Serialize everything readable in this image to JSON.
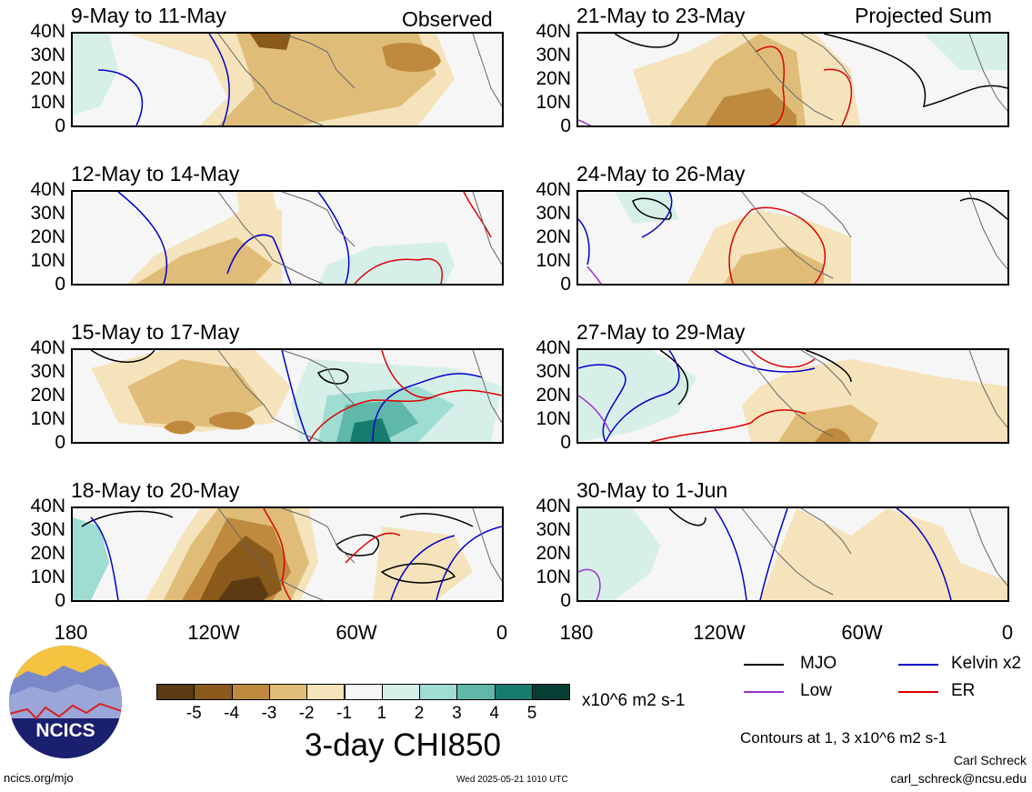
{
  "observed_label": "Observed",
  "projected_label": "Projected Sum",
  "panels_left": [
    {
      "title": "9-May to 11-May"
    },
    {
      "title": "12-May to 14-May"
    },
    {
      "title": "15-May to 17-May"
    },
    {
      "title": "18-May to 20-May"
    }
  ],
  "panels_right": [
    {
      "title": "21-May to 23-May"
    },
    {
      "title": "24-May to 26-May"
    },
    {
      "title": "27-May to 29-May"
    },
    {
      "title": "30-May to 1-Jun"
    }
  ],
  "lat_labels": [
    "40N",
    "30N",
    "20N",
    "10N",
    "0"
  ],
  "lon_labels": [
    "180",
    "120W",
    "60W",
    "0"
  ],
  "colorbar": {
    "colors": [
      "#5c3a12",
      "#8a5a1c",
      "#c08a3e",
      "#dfbd79",
      "#f5e3bb",
      "#f6f6f6",
      "#d7efe9",
      "#9fdcd2",
      "#5fb8aa",
      "#167c6e",
      "#063e33"
    ],
    "labels": [
      "-5",
      "-4",
      "-3",
      "-2",
      "-1",
      "1",
      "2",
      "3",
      "4",
      "5"
    ],
    "units": "x10^6 m2 s-1",
    "title": "3-day CHI850"
  },
  "legend": {
    "mjo": {
      "label": "MJO",
      "color": "#000000"
    },
    "low": {
      "label": "Low",
      "color": "#9933cc"
    },
    "kelvin": {
      "label": "Kelvin x2",
      "color": "#0000cc"
    },
    "er": {
      "label": "ER",
      "color": "#dd0000"
    }
  },
  "contours_note": "Contours at 1, 3 x10^6 m2 s-1",
  "logo_text": "NCICS",
  "footer": {
    "url": "ncics.org/mjo",
    "timestamp": "Wed 2025-05-21 1010 UTC",
    "author": "Carl Schreck",
    "email": "carl_schreck@ncsu.edu"
  }
}
